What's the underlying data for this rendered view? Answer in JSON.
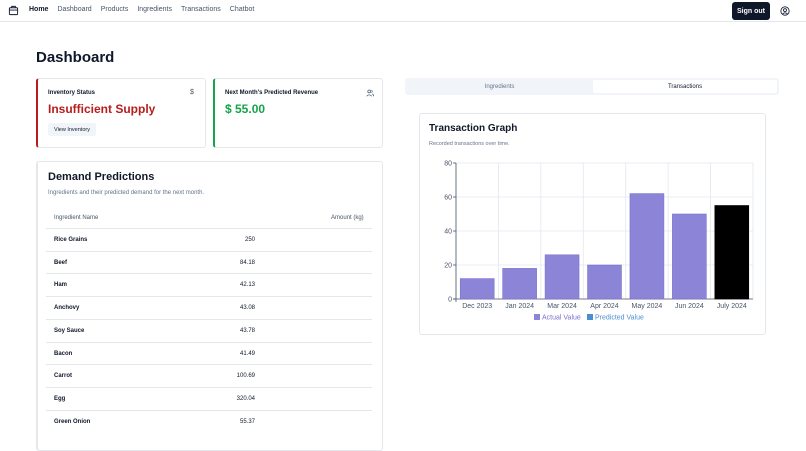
{
  "nav": {
    "links": [
      "Home",
      "Dashboard",
      "Products",
      "Ingredients",
      "Transactions",
      "Chatbot"
    ],
    "sign_out": "Sign out"
  },
  "page": {
    "title": "Dashboard"
  },
  "inventory": {
    "label": "Inventory Status",
    "status": "Insufficient Supply",
    "button": "View Inventory",
    "icon": "dollar-icon"
  },
  "revenue": {
    "label": "Next Month's Predicted Revenue",
    "value": "$ 55.00",
    "icon": "users-icon"
  },
  "demand": {
    "title": "Demand Predictions",
    "subtitle": "Ingredients and their predicted demand for the next month.",
    "col_name": "Ingredient Name",
    "col_amount": "Amount (kg)",
    "rows": [
      {
        "name": "Rice Grains",
        "amount": "250"
      },
      {
        "name": "Beef",
        "amount": "84.18"
      },
      {
        "name": "Ham",
        "amount": "42.13"
      },
      {
        "name": "Anchovy",
        "amount": "43.08"
      },
      {
        "name": "Soy Sauce",
        "amount": "43.78"
      },
      {
        "name": "Bacon",
        "amount": "41.49"
      },
      {
        "name": "Carrot",
        "amount": "100.69"
      },
      {
        "name": "Egg",
        "amount": "320.04"
      },
      {
        "name": "Green Onion",
        "amount": "55.37"
      }
    ]
  },
  "tabs": {
    "ingredients": "Ingredients",
    "transactions": "Transactions"
  },
  "graph": {
    "title": "Transaction Graph",
    "subtitle": "Recorded transactions over time."
  },
  "chart_data": {
    "type": "bar",
    "categories": [
      "Dec 2023",
      "Jan 2024",
      "Mar 2024",
      "Apr 2024",
      "May 2024",
      "Jun 2024",
      "July 2024"
    ],
    "series": [
      {
        "name": "Actual Value",
        "values": [
          12,
          18,
          26,
          20,
          62,
          50,
          null
        ],
        "color": "#8b84d7"
      },
      {
        "name": "Predicted Value",
        "values": [
          null,
          null,
          null,
          null,
          null,
          null,
          55
        ],
        "color": "#000000"
      }
    ],
    "legend_colors": [
      "#8b84d7",
      "#4a8fd0"
    ],
    "ylim": [
      0,
      80
    ],
    "yticks": [
      0,
      20,
      40,
      60,
      80
    ],
    "grid": true,
    "legend": "bottom"
  }
}
